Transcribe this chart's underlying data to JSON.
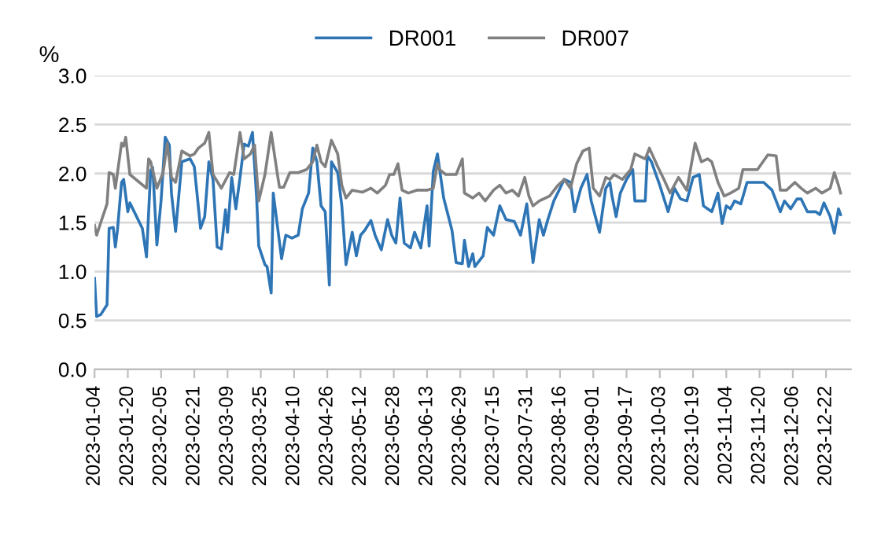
{
  "chart_data": {
    "type": "line",
    "ylabel": "%",
    "ylim": [
      0,
      3.0
    ],
    "yticks": [
      {
        "value": 0,
        "label": "0.0"
      },
      {
        "value": 0.5,
        "label": "0.5"
      },
      {
        "value": 1,
        "label": "1.0"
      },
      {
        "value": 1.5,
        "label": "1.5"
      },
      {
        "value": 2,
        "label": "2.0"
      },
      {
        "value": 2.5,
        "label": "2.5"
      },
      {
        "value": 3,
        "label": "3.0"
      }
    ],
    "xlim": [
      "2023-01-04",
      "2024-01-03"
    ],
    "xticks": [
      "2023-01-04",
      "2023-01-20",
      "2023-02-05",
      "2023-02-21",
      "2023-03-09",
      "2023-03-25",
      "2023-04-10",
      "2023-04-26",
      "2023-05-12",
      "2023-05-28",
      "2023-06-13",
      "2023-06-29",
      "2023-07-15",
      "2023-07-31",
      "2023-08-16",
      "2023-09-01",
      "2023-09-17",
      "2023-10-03",
      "2023-10-19",
      "2023-11-04",
      "2023-11-20",
      "2023-12-06",
      "2023-12-22"
    ],
    "grid": "y",
    "legend": "top",
    "line_style": "solid",
    "marker": "none",
    "series": [
      {
        "name": "DR001",
        "color": "#2e75b6",
        "x": [
          "2023-01-04",
          "2023-01-05",
          "2023-01-07",
          "2023-01-10",
          "2023-01-11",
          "2023-01-13",
          "2023-01-14",
          "2023-01-15",
          "2023-01-17",
          "2023-01-18",
          "2023-01-20",
          "2023-01-21",
          "2023-01-27",
          "2023-01-29",
          "2023-01-31",
          "2023-02-01",
          "2023-02-03",
          "2023-02-05",
          "2023-02-07",
          "2023-02-09",
          "2023-02-10",
          "2023-02-12",
          "2023-02-15",
          "2023-02-19",
          "2023-02-21",
          "2023-02-24",
          "2023-02-26",
          "2023-02-28",
          "2023-03-02",
          "2023-03-04",
          "2023-03-06",
          "2023-03-08",
          "2023-03-09",
          "2023-03-11",
          "2023-03-13",
          "2023-03-15",
          "2023-03-17",
          "2023-03-19",
          "2023-03-21",
          "2023-03-23",
          "2023-03-24",
          "2023-03-27",
          "2023-03-28",
          "2023-03-30",
          "2023-03-31",
          "2023-04-04",
          "2023-04-06",
          "2023-04-09",
          "2023-04-12",
          "2023-04-14",
          "2023-04-17",
          "2023-04-19",
          "2023-04-21",
          "2023-04-23",
          "2023-04-25",
          "2023-04-27",
          "2023-04-28",
          "2023-05-01",
          "2023-05-03",
          "2023-05-05",
          "2023-05-08",
          "2023-05-10",
          "2023-05-12",
          "2023-05-14",
          "2023-05-17",
          "2023-05-19",
          "2023-05-22",
          "2023-05-25",
          "2023-05-27",
          "2023-05-29",
          "2023-05-31",
          "2023-06-02",
          "2023-06-05",
          "2023-06-07",
          "2023-06-10",
          "2023-06-13",
          "2023-06-14",
          "2023-06-16",
          "2023-06-18",
          "2023-06-21",
          "2023-06-25",
          "2023-06-27",
          "2023-06-30",
          "2023-07-01",
          "2023-07-03",
          "2023-07-05",
          "2023-07-06",
          "2023-07-10",
          "2023-07-12",
          "2023-07-15",
          "2023-07-18",
          "2023-07-21",
          "2023-07-25",
          "2023-07-28",
          "2023-07-31",
          "2023-08-03",
          "2023-08-06",
          "2023-08-08",
          "2023-08-10",
          "2023-08-13",
          "2023-08-16",
          "2023-08-18",
          "2023-08-21",
          "2023-08-23",
          "2023-08-26",
          "2023-08-29",
          "2023-08-31",
          "2023-09-04",
          "2023-09-07",
          "2023-09-09",
          "2023-09-10",
          "2023-09-12",
          "2023-09-14",
          "2023-09-17",
          "2023-09-20",
          "2023-09-21",
          "2023-09-26",
          "2023-09-27",
          "2023-09-29",
          "2023-10-03",
          "2023-10-07",
          "2023-10-10",
          "2023-10-13",
          "2023-10-16",
          "2023-10-19",
          "2023-10-22",
          "2023-10-24",
          "2023-10-28",
          "2023-10-31",
          "2023-11-02",
          "2023-11-04",
          "2023-11-06",
          "2023-11-08",
          "2023-11-11",
          "2023-11-14",
          "2023-11-22",
          "2023-11-26",
          "2023-11-30",
          "2023-12-02",
          "2023-12-05",
          "2023-12-08",
          "2023-12-10",
          "2023-12-13",
          "2023-12-17",
          "2023-12-19",
          "2023-12-21",
          "2023-12-24",
          "2023-12-26",
          "2023-12-28",
          "2023-12-29"
        ],
        "values": [
          0.93,
          0.54,
          0.56,
          0.66,
          1.44,
          1.45,
          1.25,
          1.42,
          1.91,
          1.94,
          1.61,
          1.7,
          1.44,
          1.15,
          2.03,
          2.06,
          1.27,
          1.72,
          2.37,
          2.29,
          1.8,
          1.41,
          2.12,
          2.15,
          2.07,
          1.44,
          1.56,
          2.12,
          1.94,
          1.25,
          1.23,
          1.63,
          1.4,
          1.96,
          1.64,
          1.96,
          2.3,
          2.28,
          2.42,
          1.75,
          1.26,
          1.07,
          1.05,
          0.78,
          1.8,
          1.13,
          1.37,
          1.34,
          1.37,
          1.64,
          1.8,
          2.26,
          2.12,
          1.67,
          1.61,
          0.86,
          2.12,
          2.01,
          1.67,
          1.07,
          1.4,
          1.16,
          1.37,
          1.42,
          1.52,
          1.37,
          1.22,
          1.53,
          1.37,
          1.29,
          1.75,
          1.29,
          1.24,
          1.4,
          1.24,
          1.67,
          1.26,
          2.02,
          2.2,
          1.75,
          1.42,
          1.09,
          1.08,
          1.32,
          1.05,
          1.18,
          1.05,
          1.16,
          1.45,
          1.37,
          1.67,
          1.53,
          1.51,
          1.37,
          1.69,
          1.09,
          1.53,
          1.37,
          1.52,
          1.72,
          1.85,
          1.94,
          1.91,
          1.61,
          1.85,
          1.99,
          1.72,
          1.4,
          1.85,
          1.91,
          1.77,
          1.56,
          1.8,
          1.94,
          2.04,
          1.72,
          1.72,
          2.18,
          2.12,
          1.88,
          1.61,
          1.85,
          1.74,
          1.72,
          1.96,
          1.99,
          1.67,
          1.61,
          1.8,
          1.49,
          1.67,
          1.64,
          1.72,
          1.69,
          1.91,
          1.91,
          1.83,
          1.61,
          1.72,
          1.64,
          1.74,
          1.74,
          1.61,
          1.61,
          1.58,
          1.7,
          1.56,
          1.39,
          1.64,
          1.58
        ]
      },
      {
        "name": "DR007",
        "color": "#808080",
        "x": [
          "2023-01-04",
          "2023-01-05",
          "2023-01-07",
          "2023-01-10",
          "2023-01-11",
          "2023-01-13",
          "2023-01-14",
          "2023-01-17",
          "2023-01-18",
          "2023-01-19",
          "2023-01-21",
          "2023-01-29",
          "2023-01-30",
          "2023-01-31",
          "2023-02-03",
          "2023-02-06",
          "2023-02-08",
          "2023-02-10",
          "2023-02-12",
          "2023-02-15",
          "2023-02-19",
          "2023-02-21",
          "2023-02-23",
          "2023-02-26",
          "2023-02-28",
          "2023-03-02",
          "2023-03-06",
          "2023-03-10",
          "2023-03-12",
          "2023-03-15",
          "2023-03-17",
          "2023-03-20",
          "2023-03-22",
          "2023-03-24",
          "2023-03-27",
          "2023-03-30",
          "2023-04-02",
          "2023-04-03",
          "2023-04-05",
          "2023-04-08",
          "2023-04-12",
          "2023-04-16",
          "2023-04-19",
          "2023-04-21",
          "2023-04-23",
          "2023-04-25",
          "2023-04-28",
          "2023-05-01",
          "2023-05-03",
          "2023-05-05",
          "2023-05-08",
          "2023-05-13",
          "2023-05-17",
          "2023-05-20",
          "2023-05-24",
          "2023-05-26",
          "2023-05-28",
          "2023-05-30",
          "2023-06-01",
          "2023-06-04",
          "2023-06-08",
          "2023-06-13",
          "2023-06-16",
          "2023-06-18",
          "2023-06-19",
          "2023-06-22",
          "2023-06-27",
          "2023-06-30",
          "2023-07-01",
          "2023-07-05",
          "2023-07-08",
          "2023-07-11",
          "2023-07-15",
          "2023-07-18",
          "2023-07-21",
          "2023-07-24",
          "2023-07-27",
          "2023-07-30",
          "2023-08-01",
          "2023-08-03",
          "2023-08-06",
          "2023-08-11",
          "2023-08-15",
          "2023-08-18",
          "2023-08-21",
          "2023-08-24",
          "2023-08-27",
          "2023-08-30",
          "2023-09-01",
          "2023-09-04",
          "2023-09-07",
          "2023-09-09",
          "2023-09-11",
          "2023-09-15",
          "2023-09-19",
          "2023-09-21",
          "2023-09-26",
          "2023-09-28",
          "2023-10-02",
          "2023-10-05",
          "2023-10-08",
          "2023-10-12",
          "2023-10-16",
          "2023-10-20",
          "2023-10-23",
          "2023-10-26",
          "2023-10-28",
          "2023-10-31",
          "2023-11-03",
          "2023-11-06",
          "2023-11-10",
          "2023-11-12",
          "2023-11-15",
          "2023-11-19",
          "2023-11-24",
          "2023-11-28",
          "2023-11-30",
          "2023-12-03",
          "2023-12-07",
          "2023-12-10",
          "2023-12-13",
          "2023-12-17",
          "2023-12-20",
          "2023-12-24",
          "2023-12-26",
          "2023-12-28",
          "2023-12-29"
        ],
        "values": [
          1.47,
          1.37,
          1.5,
          1.69,
          2.01,
          1.99,
          1.85,
          2.31,
          2.28,
          2.37,
          1.99,
          1.85,
          2.15,
          2.12,
          1.85,
          2.01,
          2.31,
          1.96,
          1.91,
          2.23,
          2.18,
          2.2,
          2.26,
          2.31,
          2.42,
          1.99,
          1.85,
          2.01,
          1.99,
          2.42,
          2.15,
          2.2,
          2.29,
          1.72,
          1.99,
          2.42,
          1.99,
          1.86,
          1.86,
          2.01,
          2.01,
          2.04,
          2.12,
          2.29,
          2.12,
          2.07,
          2.34,
          2.2,
          1.88,
          1.75,
          1.83,
          1.81,
          1.85,
          1.8,
          1.88,
          1.99,
          1.99,
          2.1,
          1.83,
          1.8,
          1.83,
          1.83,
          1.85,
          2.1,
          2.04,
          1.99,
          1.99,
          2.15,
          1.8,
          1.75,
          1.8,
          1.72,
          1.83,
          1.88,
          1.8,
          1.83,
          1.77,
          1.96,
          1.77,
          1.67,
          1.72,
          1.77,
          1.88,
          1.94,
          1.85,
          2.1,
          2.23,
          2.26,
          1.85,
          1.77,
          1.96,
          1.94,
          1.99,
          1.94,
          2.04,
          2.2,
          2.15,
          2.26,
          2.07,
          1.94,
          1.8,
          1.96,
          1.83,
          2.31,
          2.12,
          2.15,
          2.12,
          1.91,
          1.77,
          1.8,
          1.85,
          2.04,
          2.04,
          2.04,
          2.19,
          2.18,
          1.83,
          1.83,
          1.91,
          1.85,
          1.8,
          1.85,
          1.8,
          1.85,
          2.01,
          1.88,
          1.8
        ]
      }
    ]
  }
}
